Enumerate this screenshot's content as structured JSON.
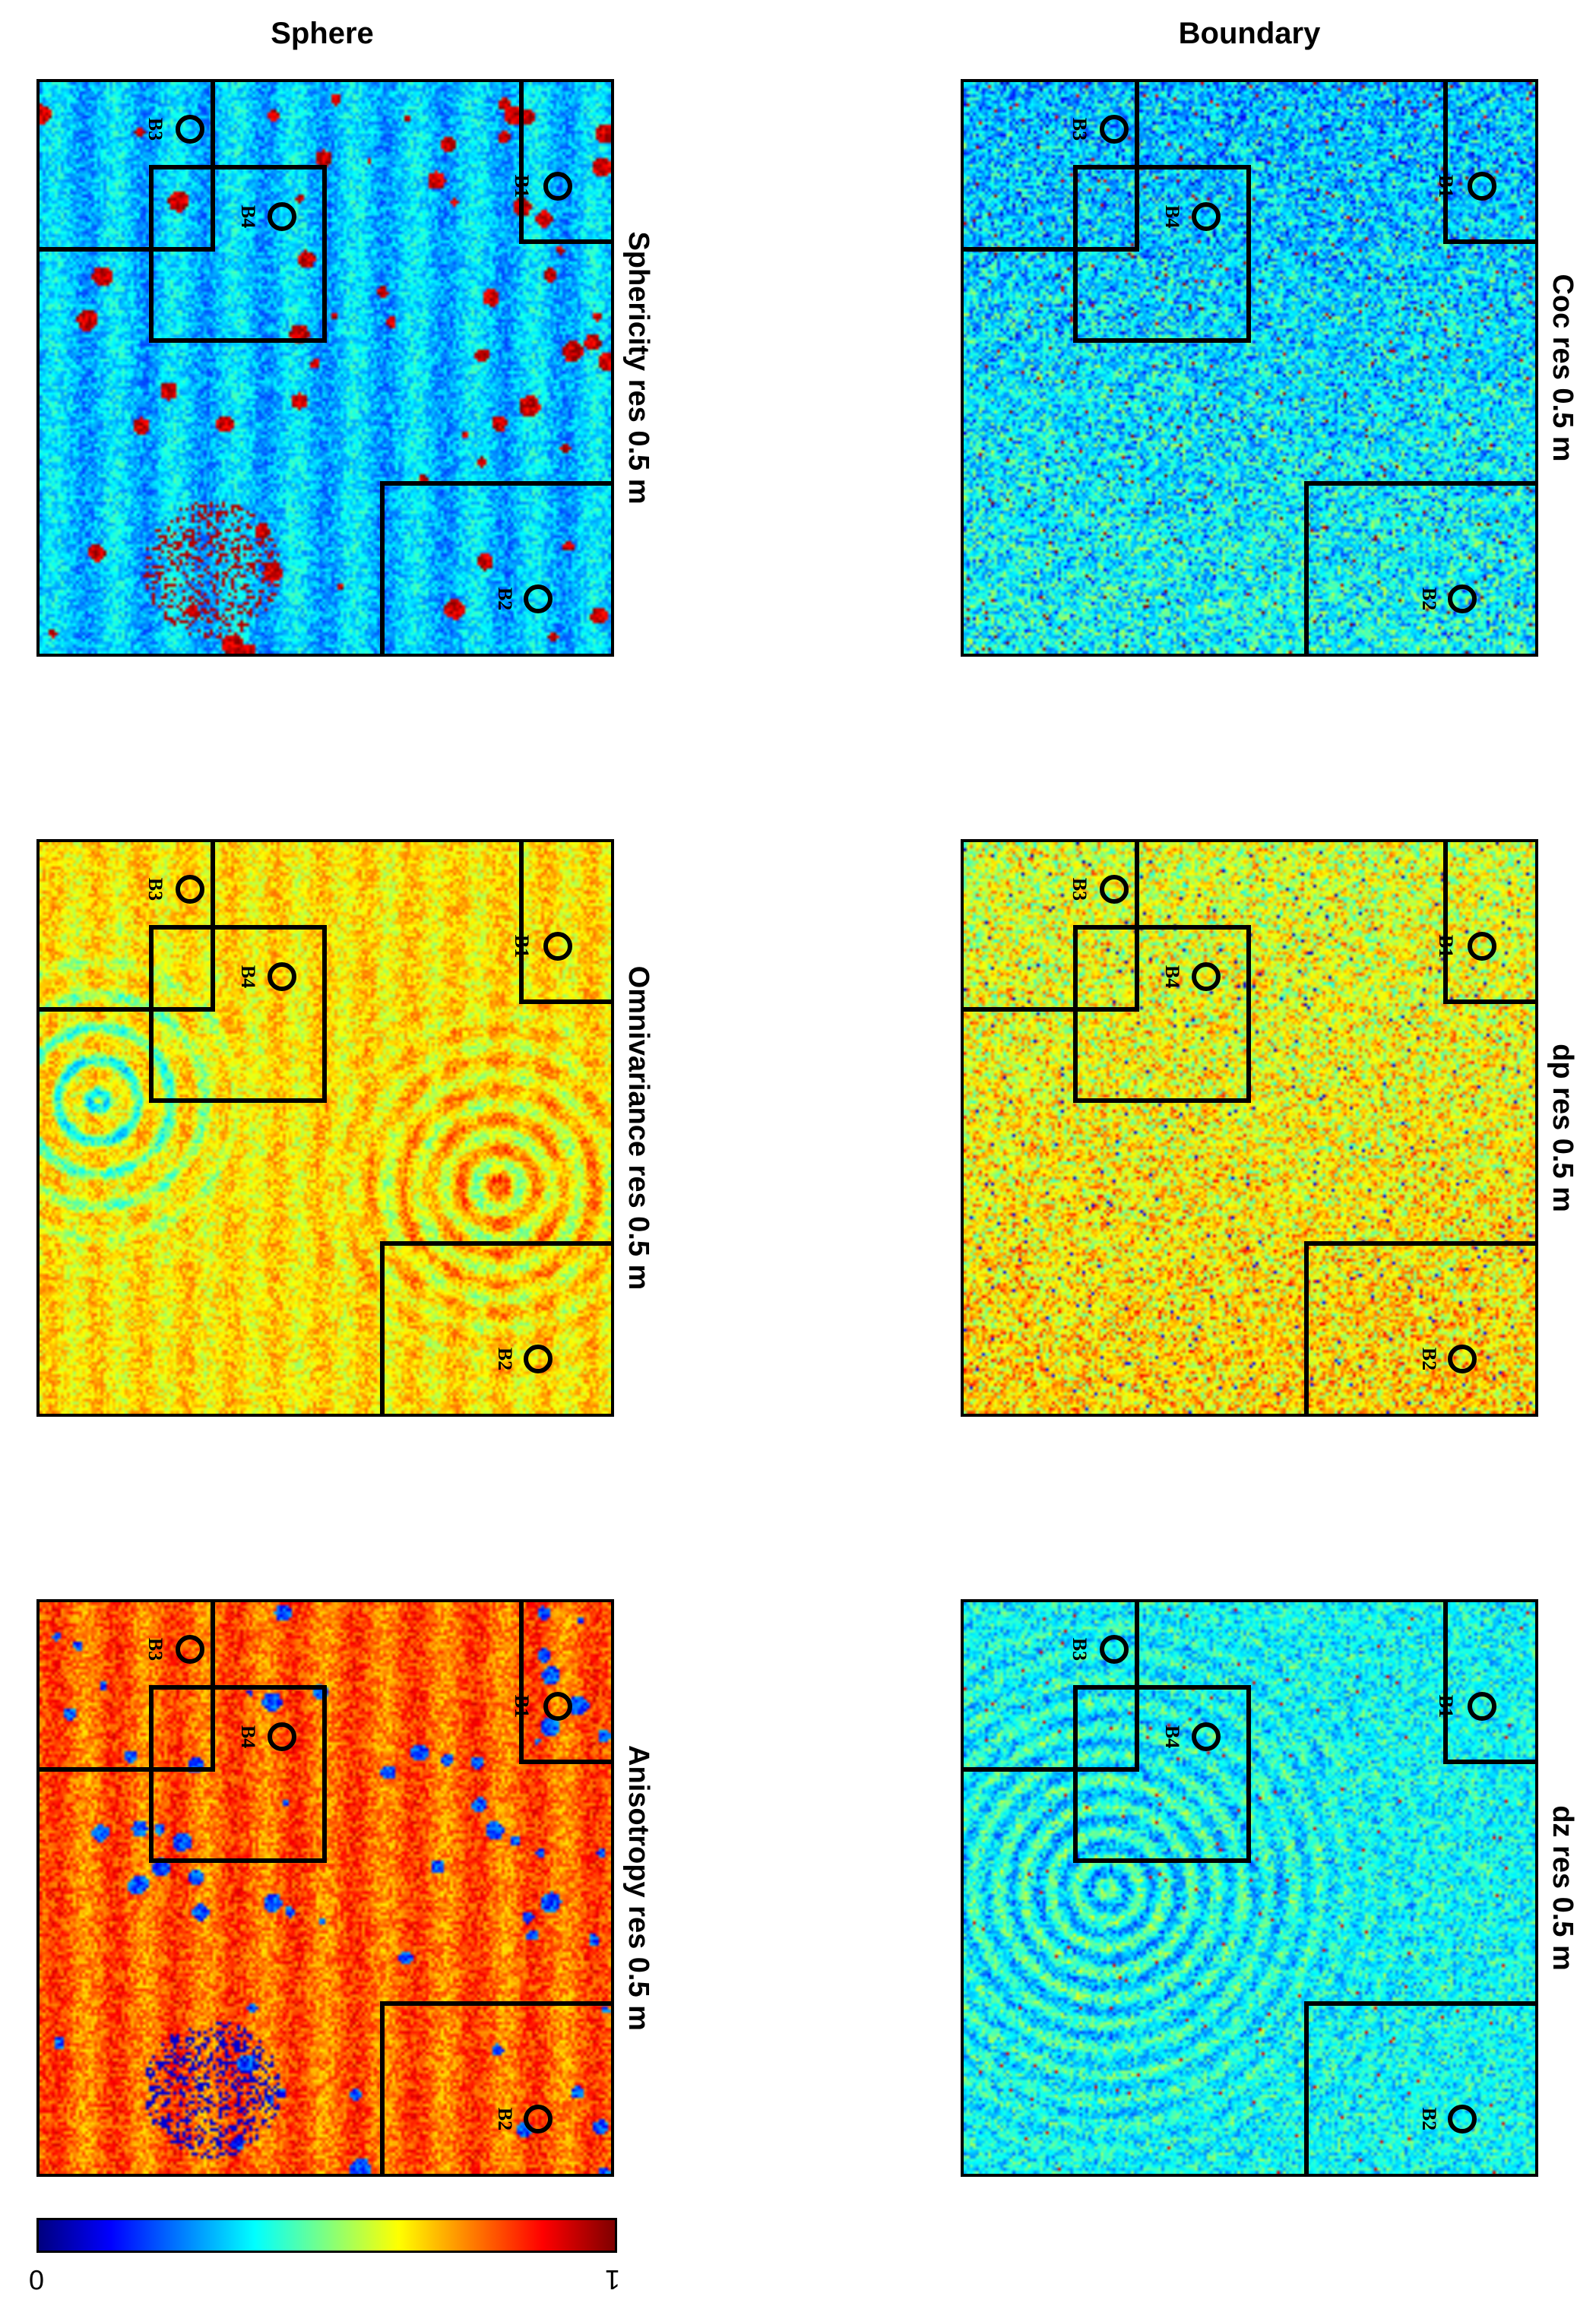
{
  "column_titles": {
    "boundary": "Boundary",
    "sphere": "Sphere"
  },
  "panels": [
    {
      "id": "coc",
      "title": "Coc res 0.5 m",
      "column": "Boundary",
      "dominant_level": 0.35
    },
    {
      "id": "dp",
      "title": "dp res 0.5 m",
      "column": "Boundary",
      "dominant_level": 0.62
    },
    {
      "id": "dz",
      "title": "dz res 0.5 m",
      "column": "Boundary",
      "dominant_level": 0.38
    },
    {
      "id": "sphericity",
      "title": "Sphericity res 0.5 m",
      "column": "Sphere",
      "dominant_level": 0.32
    },
    {
      "id": "omnivariance",
      "title": "Omnivariance res 0.5 m",
      "column": "Sphere",
      "dominant_level": 0.65
    },
    {
      "id": "anisotropy",
      "title": "Anisotropy res 0.5 m",
      "column": "Sphere",
      "dominant_level": 0.78
    }
  ],
  "marker_labels": [
    "B1",
    "B2",
    "B3",
    "B4"
  ],
  "colorbar": {
    "min_label": "0",
    "max_label": "1",
    "colormap": "jet",
    "range": [
      0,
      1
    ]
  }
}
